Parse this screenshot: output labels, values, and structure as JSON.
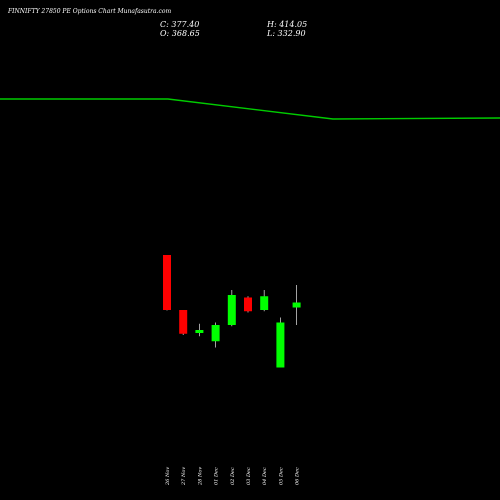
{
  "header": {
    "title": "FINNIFTY 27850  PE Options  Chart Munafasutra.com",
    "close_label": "C: 377.40",
    "open_label": "O: 368.65",
    "high_label": "H: 414.05",
    "low_label": "L: 332.90"
  },
  "colors": {
    "background": "#000000",
    "up": "#00ff00",
    "down": "#ff0000",
    "line": "#00cc00"
  },
  "chart_data": {
    "type": "candlestick",
    "categories": [
      "26 Nov",
      "27 Nov",
      "28 Nov",
      "01 Dec",
      "02 Dec",
      "03 Dec",
      "04 Dec",
      "05 Dec",
      "06 Dec"
    ],
    "candles": [
      {
        "date": "26 Nov",
        "open": 650,
        "high": 650,
        "low": 428,
        "close": 430,
        "dir": "down"
      },
      {
        "date": "27 Nov",
        "open": 430,
        "high": 430,
        "low": 330,
        "close": 335,
        "dir": "down"
      },
      {
        "date": "28 Nov",
        "open": 338,
        "high": 375,
        "low": 325,
        "close": 350,
        "dir": "up"
      },
      {
        "date": "01 Dec",
        "open": 305,
        "high": 380,
        "low": 280,
        "close": 370,
        "dir": "up"
      },
      {
        "date": "02 Dec",
        "open": 370,
        "high": 510,
        "low": 365,
        "close": 490,
        "dir": "up"
      },
      {
        "date": "03 Dec",
        "open": 480,
        "high": 485,
        "low": 420,
        "close": 425,
        "dir": "down"
      },
      {
        "date": "04 Dec",
        "open": 430,
        "high": 510,
        "low": 425,
        "close": 485,
        "dir": "up"
      },
      {
        "date": "05 Dec",
        "open": 200,
        "high": 400,
        "low": 200,
        "close": 380,
        "dir": "up"
      },
      {
        "date": "06 Dec",
        "open": 440,
        "high": 530,
        "low": 370,
        "close": 460,
        "dir": "up"
      }
    ],
    "ylim": [
      0,
      2500
    ],
    "line": {
      "points": [
        2150,
        2150,
        2150,
        2150,
        2150,
        2150,
        2150,
        2150,
        2150,
        2150,
        2150,
        2150,
        2150,
        2150,
        2150,
        2150,
        2150,
        2150,
        2150,
        2150,
        2150,
        2150,
        2150,
        2150,
        2150,
        2150,
        2150,
        2150,
        2150,
        2150,
        2150,
        2150,
        2150
      ]
    }
  }
}
